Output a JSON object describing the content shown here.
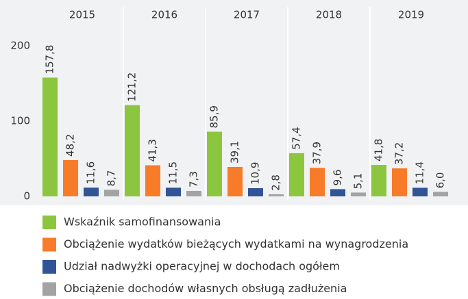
{
  "chart_data": {
    "type": "bar",
    "categories": [
      "2015",
      "2016",
      "2017",
      "2018",
      "2019"
    ],
    "series": [
      {
        "name": "Wskaźnik samofinansowania",
        "color": "#8cc63e",
        "values": [
          157.8,
          121.2,
          85.9,
          57.4,
          41.8
        ],
        "value_labels": [
          "157,8",
          "121,2",
          "85,9",
          "57,4",
          "41,8"
        ]
      },
      {
        "name": "Obciążenie wydatków bieżących wydatkami na wynagrodzenia",
        "color": "#f87b2a",
        "values": [
          48.2,
          41.3,
          39.1,
          37.9,
          37.2
        ],
        "value_labels": [
          "48,2",
          "41,3",
          "39,1",
          "37,9",
          "37,2"
        ]
      },
      {
        "name": "Udział nadwyżki operacyjnej w dochodach ogółem",
        "color": "#2f5597",
        "values": [
          11.6,
          11.5,
          10.9,
          9.6,
          11.4
        ],
        "value_labels": [
          "11,6",
          "11,5",
          "10,9",
          "9,6",
          "11,4"
        ]
      },
      {
        "name": "Obciążenie dochodów własnych obsługą zadłużenia",
        "color": "#a3a3a3",
        "values": [
          8.7,
          7.3,
          2.8,
          5.1,
          6.0
        ],
        "value_labels": [
          "8,7",
          "7,3",
          "2,8",
          "5,1",
          "6,0"
        ]
      }
    ],
    "ylim": [
      0,
      200
    ],
    "yticks": [
      0,
      100,
      200
    ]
  }
}
